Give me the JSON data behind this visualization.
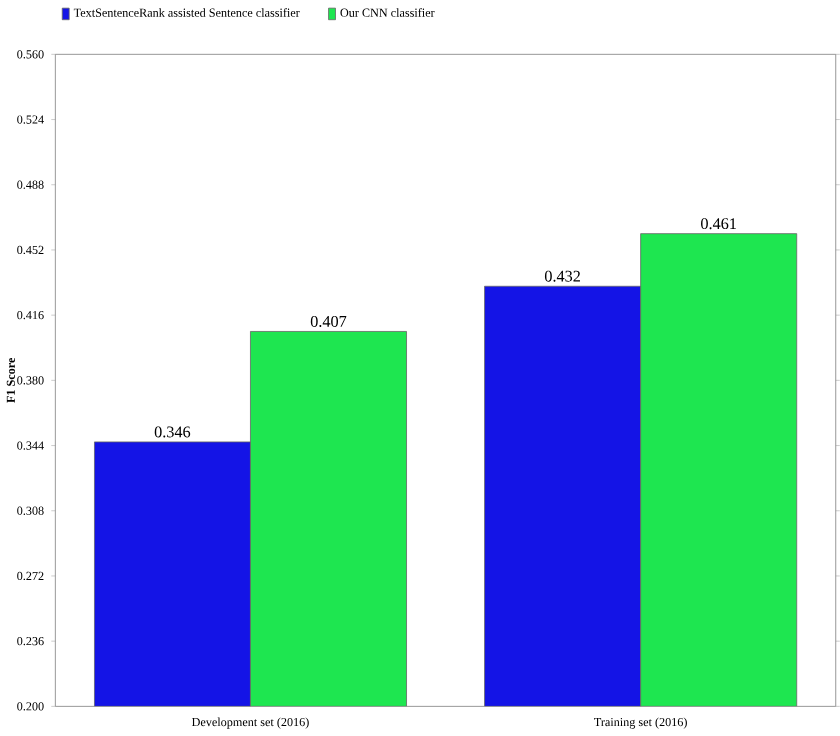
{
  "chart_data": {
    "type": "bar",
    "ylabel": "F1 Score",
    "categories": [
      "Development set (2016)",
      "Training set (2016)"
    ],
    "series": [
      {
        "name": "TextSentenceRank assisted Sentence classifier",
        "color": "#1414e6",
        "values": [
          0.346,
          0.432
        ]
      },
      {
        "name": "Our CNN classifier",
        "color": "#1ee650",
        "values": [
          0.407,
          0.461
        ]
      }
    ],
    "ylim": [
      0.2,
      0.56
    ],
    "yticks": [
      {
        "value": 0.2,
        "label": "0.200"
      },
      {
        "value": 0.236,
        "label": "0.236"
      },
      {
        "value": 0.272,
        "label": "0.272"
      },
      {
        "value": 0.308,
        "label": "0.308"
      },
      {
        "value": 0.344,
        "label": "0.344"
      },
      {
        "value": 0.38,
        "label": "0.380"
      },
      {
        "value": 0.416,
        "label": "0.416"
      },
      {
        "value": 0.452,
        "label": "0.452"
      },
      {
        "value": 0.488,
        "label": "0.488"
      },
      {
        "value": 0.524,
        "label": "0.524"
      },
      {
        "value": 0.56,
        "label": "0.560"
      }
    ],
    "data_labels": true,
    "legend": "top left",
    "grid": false
  }
}
